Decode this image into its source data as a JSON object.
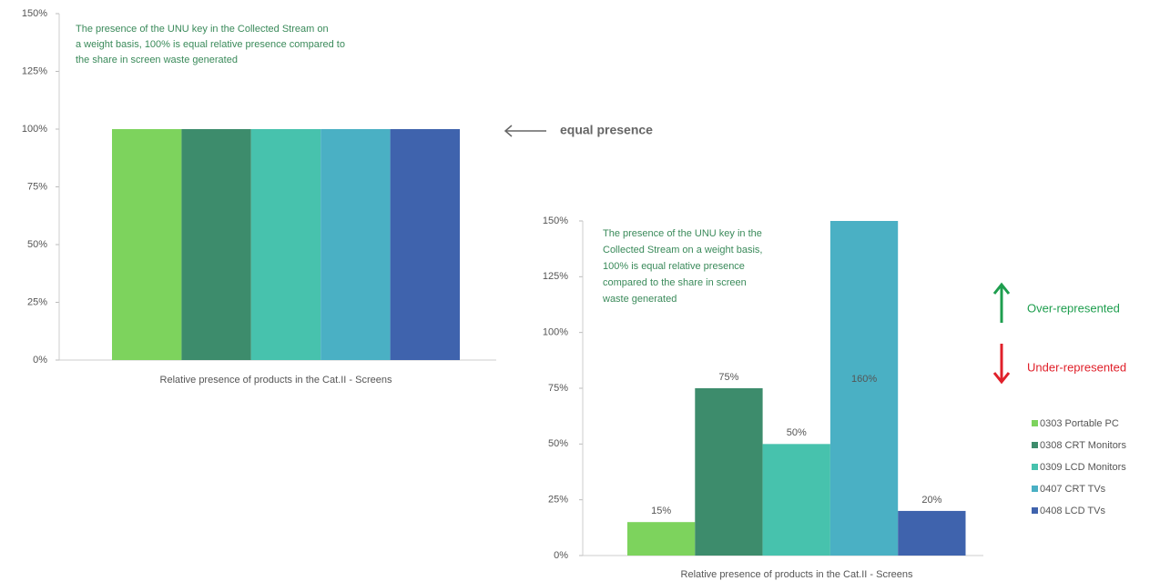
{
  "chart_data": [
    {
      "type": "bar",
      "values": [
        100,
        100,
        100,
        100,
        100
      ],
      "colors": [
        "#7dd35d",
        "#3d8c6c",
        "#47c2ad",
        "#4ab0c4",
        "#3f63ad"
      ],
      "ylim": [
        0,
        150
      ],
      "yticks": [
        {
          "value": 0,
          "label": "0%"
        },
        {
          "value": 25,
          "label": "25%"
        },
        {
          "value": 50,
          "label": "50%"
        },
        {
          "value": 75,
          "label": "75%"
        },
        {
          "value": 100,
          "label": "100%"
        },
        {
          "value": 125,
          "label": "125%"
        },
        {
          "value": 150,
          "label": "150%"
        }
      ],
      "x_label": "Relative presence of products in the Cat.II - Screens",
      "annotation": [
        "The presence of the UNU key in the Collected Stream on",
        "a weight basis, 100% is equal relative presence compared to",
        "the share in screen waste generated"
      ],
      "side_note": "equal presence"
    },
    {
      "type": "bar",
      "series": [
        {
          "name": "0303 Portable PC",
          "color": "#7dd35d",
          "values": [
            15
          ],
          "value_labels": [
            "15%"
          ]
        },
        {
          "name": "0308 CRT Monitors",
          "color": "#3d8c6c",
          "values": [
            75
          ],
          "value_labels": [
            "75%"
          ]
        },
        {
          "name": "0309 LCD Monitors",
          "color": "#47c2ad",
          "values": [
            50
          ],
          "value_labels": [
            "50%"
          ]
        },
        {
          "name": "0407 CRT TVs",
          "color": "#4ab0c4",
          "values": [
            160
          ],
          "value_labels": [
            "160%"
          ]
        },
        {
          "name": "0408 LCD TVs",
          "color": "#3f63ad",
          "values": [
            20
          ],
          "value_labels": [
            "20%"
          ]
        }
      ],
      "ylim": [
        0,
        150
      ],
      "yticks": [
        {
          "value": 0,
          "label": "0%"
        },
        {
          "value": 25,
          "label": "25%"
        },
        {
          "value": 50,
          "label": "50%"
        },
        {
          "value": 75,
          "label": "75%"
        },
        {
          "value": 100,
          "label": "100%"
        },
        {
          "value": 125,
          "label": "125%"
        },
        {
          "value": 150,
          "label": "150%"
        }
      ],
      "x_label": "Relative presence of products in the Cat.II - Screens",
      "annotation": [
        "The presence of the UNU key in the",
        "Collected Stream on a weight basis,",
        "100% is equal relative presence",
        "compared to the share in screen",
        "waste generated"
      ],
      "indicators": [
        {
          "label": "Over-represented",
          "color": "#1e9e4e",
          "direction": "up"
        },
        {
          "label": "Under-represented",
          "color": "#e0202a",
          "direction": "down"
        }
      ]
    }
  ]
}
